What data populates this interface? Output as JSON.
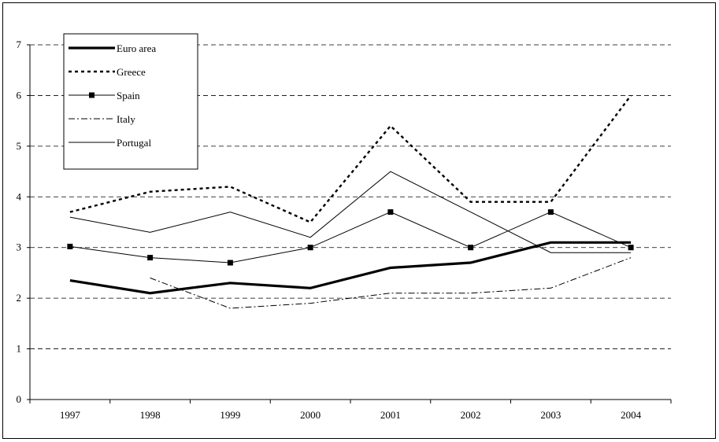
{
  "chart_data": {
    "type": "line",
    "title": "",
    "xlabel": "",
    "ylabel": "",
    "ylim": [
      0,
      7
    ],
    "yticks": [
      0,
      1,
      2,
      3,
      4,
      5,
      6,
      7
    ],
    "categories": [
      "1997",
      "1998",
      "1999",
      "2000",
      "2001",
      "2002",
      "2003",
      "2004"
    ],
    "grid": "horizontal dashed",
    "legend": "top-left",
    "series": [
      {
        "name": "Euro area",
        "style": "thick-solid",
        "color": "#000000",
        "values": [
          2.35,
          2.1,
          2.3,
          2.2,
          2.6,
          2.7,
          3.1,
          3.1
        ]
      },
      {
        "name": "Greece",
        "style": "dotted",
        "color": "#000000",
        "values": [
          3.7,
          4.1,
          4.2,
          3.5,
          5.4,
          3.9,
          3.9,
          6.0
        ]
      },
      {
        "name": "Spain",
        "style": "solid-square-markers",
        "color": "#000000",
        "values": [
          3.02,
          2.8,
          2.7,
          3.0,
          3.7,
          3.0,
          3.7,
          3.0
        ]
      },
      {
        "name": "Italy",
        "style": "dash-dot",
        "color": "#000000",
        "values": [
          null,
          2.4,
          1.8,
          1.9,
          2.1,
          2.1,
          2.2,
          2.8
        ]
      },
      {
        "name": "Portugal",
        "style": "thin-solid",
        "color": "#000000",
        "values": [
          3.6,
          3.3,
          3.7,
          3.2,
          4.5,
          3.7,
          2.9,
          2.9
        ]
      }
    ]
  }
}
